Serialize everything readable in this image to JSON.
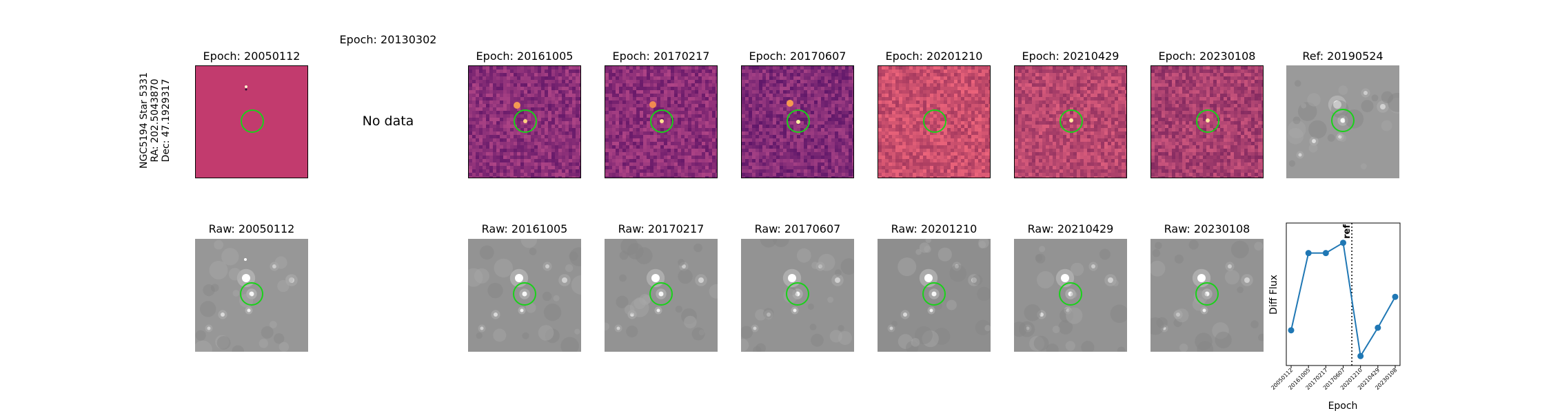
{
  "figure": {
    "side_label": "NGC5194 Star 5331\nRA: 202.5043870\nDec: 47.1929317",
    "no_data_text": "No data",
    "diff_titles": [
      "Epoch: 20050112",
      "Epoch: 20130302",
      "Epoch: 20161005",
      "Epoch: 20170217",
      "Epoch: 20170607",
      "Epoch: 20201210",
      "Epoch: 20210429",
      "Epoch: 20230108"
    ],
    "ref_title": "Ref: 20190524",
    "raw_titles": [
      "Raw: 20050112",
      "Raw: 20161005",
      "Raw: 20170217",
      "Raw: 20170607",
      "Raw: 20201210",
      "Raw: 20210429",
      "Raw: 20230108"
    ],
    "colors": {
      "aperture": "#19d219",
      "series": "#1f77b4",
      "diff_flat": "#c23b6e"
    }
  },
  "chart_data": {
    "type": "line",
    "x": [
      "20050112",
      "20161005",
      "20170217",
      "20170607",
      "20201210",
      "20210429",
      "20230108"
    ],
    "series": [
      {
        "values": [
          0.22,
          0.82,
          0.82,
          0.9,
          0.02,
          0.24,
          0.48
        ]
      }
    ],
    "xlabel": "Epoch",
    "ylabel": "Diff Flux",
    "ref_marker": {
      "label": "ref",
      "position_between": [
        "20170607",
        "20201210"
      ],
      "style": "dotted"
    },
    "grid": false,
    "legend": false
  }
}
